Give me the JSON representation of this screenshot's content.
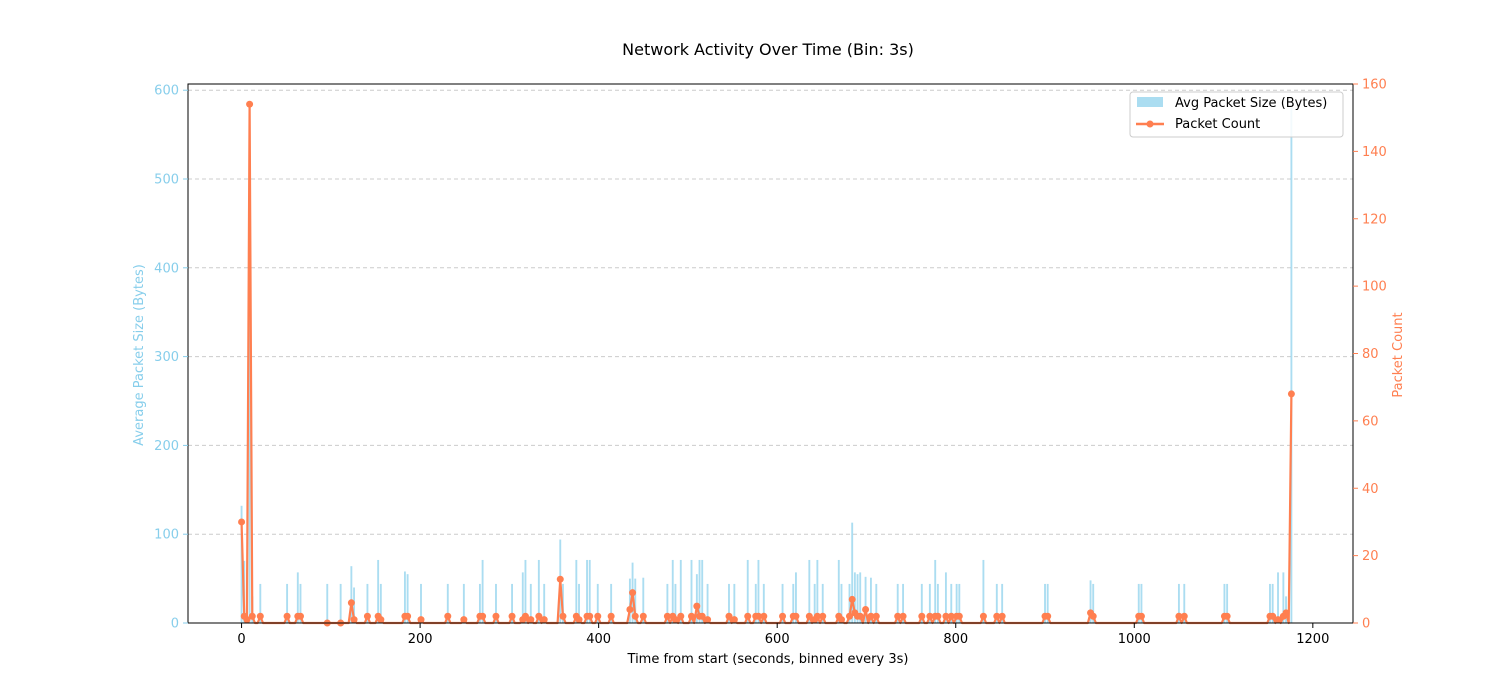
{
  "chart_data": {
    "type": "bar+line",
    "title": "Network Activity Over Time (Bin: 3s)",
    "xlabel": "Time from start (seconds, binned every 3s)",
    "ylabel_left": "Average Packet Size (Bytes)",
    "ylabel_right": "Packet Count",
    "xlim": [
      -60,
      1245
    ],
    "ylim_left": [
      0,
      607
    ],
    "ylim_right": [
      0,
      160
    ],
    "x_ticks": [
      0,
      200,
      400,
      600,
      800,
      1000,
      1200
    ],
    "y_left_ticks": [
      0,
      100,
      200,
      300,
      400,
      500,
      600
    ],
    "y_right_ticks": [
      0,
      20,
      40,
      60,
      80,
      100,
      120,
      140,
      160
    ],
    "grid": "horizontal dashed (left axis)",
    "legend_position": "top-right",
    "colors": {
      "bar": "#87ceeb",
      "line": "#ff7f50",
      "left_axis": "#87ceeb",
      "right_axis": "#ff7f50"
    },
    "series": [
      {
        "name": "Avg Packet Size (Bytes)",
        "kind": "bar",
        "x": [
          0,
          3,
          6,
          9,
          12,
          21,
          51,
          63,
          66,
          96,
          111,
          123,
          126,
          141,
          153,
          156,
          183,
          186,
          201,
          231,
          249,
          267,
          270,
          285,
          303,
          315,
          318,
          324,
          333,
          339,
          357,
          360,
          375,
          378,
          387,
          390,
          399,
          414,
          435,
          438,
          441,
          450,
          477,
          483,
          486,
          492,
          504,
          510,
          513,
          516,
          522,
          546,
          552,
          567,
          576,
          579,
          585,
          606,
          618,
          621,
          636,
          642,
          645,
          651,
          669,
          672,
          681,
          684,
          687,
          690,
          693,
          699,
          705,
          711,
          735,
          741,
          762,
          771,
          777,
          780,
          789,
          795,
          801,
          804,
          831,
          846,
          852,
          900,
          903,
          951,
          954,
          1005,
          1008,
          1050,
          1056,
          1101,
          1104,
          1152,
          1155,
          1161,
          1167,
          1170,
          1176
        ],
        "values": [
          132,
          70,
          60,
          580,
          30,
          44,
          44,
          57,
          44,
          44,
          44,
          64,
          40,
          44,
          71,
          44,
          58,
          55,
          44,
          44,
          44,
          44,
          71,
          44,
          44,
          57,
          71,
          44,
          71,
          44,
          94,
          44,
          71,
          44,
          71,
          71,
          44,
          44,
          50,
          68,
          50,
          51,
          44,
          71,
          44,
          71,
          71,
          55,
          71,
          71,
          44,
          44,
          44,
          71,
          44,
          71,
          44,
          44,
          44,
          57,
          71,
          44,
          71,
          44,
          71,
          44,
          44,
          113,
          57,
          55,
          57,
          52,
          51,
          44,
          44,
          44,
          44,
          44,
          71,
          44,
          57,
          44,
          44,
          44,
          71,
          44,
          44,
          44,
          44,
          48,
          44,
          44,
          44,
          44,
          44,
          44,
          44,
          44,
          44,
          57,
          57,
          30,
          580
        ]
      },
      {
        "name": "Packet Count",
        "kind": "line",
        "x": [
          0,
          3,
          6,
          9,
          12,
          21,
          51,
          63,
          66,
          96,
          111,
          123,
          126,
          141,
          153,
          156,
          183,
          186,
          201,
          231,
          249,
          267,
          270,
          285,
          303,
          315,
          318,
          324,
          333,
          339,
          357,
          360,
          375,
          378,
          387,
          390,
          399,
          414,
          435,
          438,
          441,
          450,
          477,
          483,
          486,
          492,
          504,
          510,
          513,
          516,
          522,
          546,
          552,
          567,
          576,
          579,
          585,
          606,
          618,
          621,
          636,
          642,
          645,
          651,
          669,
          672,
          681,
          684,
          687,
          690,
          693,
          699,
          705,
          711,
          735,
          741,
          762,
          771,
          777,
          780,
          789,
          795,
          801,
          804,
          831,
          846,
          852,
          900,
          903,
          951,
          954,
          1005,
          1008,
          1050,
          1056,
          1101,
          1104,
          1152,
          1155,
          1161,
          1167,
          1170,
          1176
        ],
        "values": [
          30,
          2,
          1,
          154,
          2,
          2,
          2,
          2,
          2,
          0,
          0,
          6,
          1,
          2,
          2,
          1,
          2,
          2,
          1,
          2,
          1,
          2,
          2,
          2,
          2,
          1,
          2,
          1,
          2,
          1,
          13,
          2,
          2,
          1,
          2,
          2,
          2,
          2,
          4,
          9,
          2,
          2,
          2,
          2,
          1,
          2,
          2,
          5,
          2,
          2,
          1,
          2,
          1,
          2,
          2,
          2,
          2,
          2,
          2,
          2,
          2,
          1,
          2,
          2,
          2,
          1,
          2,
          7,
          3,
          2,
          2,
          4,
          2,
          2,
          2,
          2,
          2,
          2,
          2,
          2,
          2,
          2,
          2,
          2,
          2,
          2,
          2,
          2,
          2,
          3,
          2,
          2,
          2,
          2,
          2,
          2,
          2,
          2,
          2,
          1,
          2,
          3,
          68
        ]
      }
    ]
  }
}
